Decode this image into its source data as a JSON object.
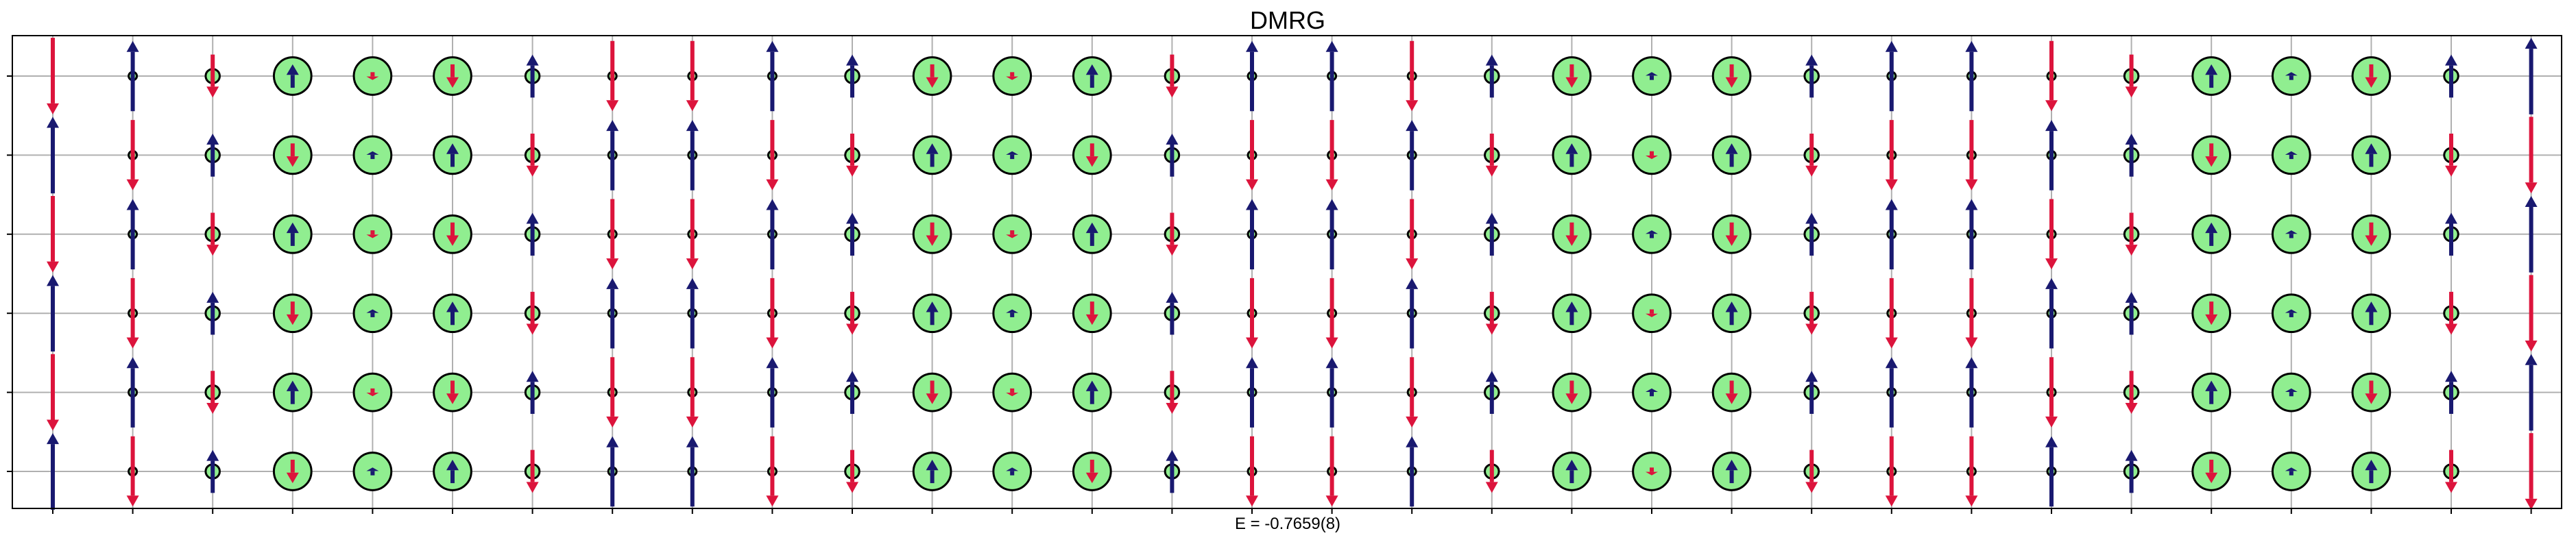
{
  "chart_data": {
    "type": "scatter",
    "title": "DMRG",
    "xlabel": "E = -0.7659(8)",
    "ylabel": "",
    "grid": true,
    "n_columns": 32,
    "n_rows": 6,
    "xlim": [
      -0.5,
      31.5
    ],
    "ylim": [
      -0.5,
      5.5
    ],
    "colors": {
      "spin_up": "#191970",
      "spin_down": "#dc143c",
      "hole_fill": "#90ee90",
      "hole_edge": "#000000",
      "grid": "#b0b0b0"
    },
    "encoding": {
      "hole_density": "circle radius proportional to hole density (0 to 1)",
      "spin": "signed arrow length, positive = up (navy), negative = down (crimson)"
    },
    "rows": [
      {
        "y": 0,
        "hole": [
          0.0,
          0.02,
          0.18,
          0.48,
          0.48,
          0.48,
          0.18,
          0.02,
          0.02,
          0.02,
          0.18,
          0.48,
          0.48,
          0.48,
          0.18,
          0.02,
          0.02,
          0.02,
          0.18,
          0.48,
          0.48,
          0.48,
          0.18,
          0.02,
          0.02,
          0.02,
          0.18,
          0.48,
          0.48,
          0.48,
          0.18,
          0.0
        ],
        "spin": [
          0.98,
          -0.9,
          0.55,
          -0.3,
          0.1,
          0.3,
          -0.55,
          0.9,
          0.9,
          -0.9,
          -0.55,
          0.3,
          0.1,
          -0.3,
          0.55,
          -0.9,
          -0.9,
          0.9,
          -0.55,
          0.3,
          -0.1,
          0.3,
          -0.55,
          -0.9,
          -0.9,
          0.9,
          0.55,
          -0.3,
          0.1,
          0.3,
          -0.55,
          -0.98
        ]
      },
      {
        "y": 1,
        "hole": [
          0.0,
          0.02,
          0.18,
          0.48,
          0.48,
          0.48,
          0.18,
          0.02,
          0.02,
          0.02,
          0.18,
          0.48,
          0.48,
          0.48,
          0.18,
          0.02,
          0.02,
          0.02,
          0.18,
          0.48,
          0.48,
          0.48,
          0.18,
          0.02,
          0.02,
          0.02,
          0.18,
          0.48,
          0.48,
          0.48,
          0.18,
          0.0
        ],
        "spin": [
          -0.98,
          0.9,
          -0.55,
          0.3,
          -0.1,
          -0.3,
          0.55,
          -0.9,
          -0.9,
          0.9,
          0.55,
          -0.3,
          -0.1,
          0.3,
          -0.55,
          0.9,
          0.9,
          -0.9,
          0.55,
          -0.3,
          0.1,
          -0.3,
          0.55,
          0.9,
          0.9,
          -0.9,
          -0.55,
          0.3,
          0.1,
          -0.3,
          0.55,
          0.98
        ]
      },
      {
        "y": 2,
        "hole": [
          0.0,
          0.02,
          0.18,
          0.48,
          0.48,
          0.48,
          0.18,
          0.02,
          0.02,
          0.02,
          0.18,
          0.48,
          0.48,
          0.48,
          0.18,
          0.02,
          0.02,
          0.02,
          0.18,
          0.48,
          0.48,
          0.48,
          0.18,
          0.02,
          0.02,
          0.02,
          0.18,
          0.48,
          0.48,
          0.48,
          0.18,
          0.0
        ],
        "spin": [
          0.98,
          -0.9,
          0.55,
          -0.3,
          0.1,
          0.3,
          -0.55,
          0.9,
          0.9,
          -0.9,
          -0.55,
          0.3,
          0.1,
          -0.3,
          0.55,
          -0.9,
          -0.9,
          0.9,
          -0.55,
          0.3,
          -0.1,
          0.3,
          -0.55,
          -0.9,
          -0.9,
          0.9,
          0.55,
          -0.3,
          0.1,
          0.3,
          -0.55,
          -0.98
        ]
      },
      {
        "y": 3,
        "hole": [
          0.0,
          0.02,
          0.18,
          0.48,
          0.48,
          0.48,
          0.18,
          0.02,
          0.02,
          0.02,
          0.18,
          0.48,
          0.48,
          0.48,
          0.18,
          0.02,
          0.02,
          0.02,
          0.18,
          0.48,
          0.48,
          0.48,
          0.18,
          0.02,
          0.02,
          0.02,
          0.18,
          0.48,
          0.48,
          0.48,
          0.18,
          0.0
        ],
        "spin": [
          -0.98,
          0.9,
          -0.55,
          0.3,
          -0.1,
          -0.3,
          0.55,
          -0.9,
          -0.9,
          0.9,
          0.55,
          -0.3,
          -0.1,
          0.3,
          -0.55,
          0.9,
          0.9,
          -0.9,
          0.55,
          -0.3,
          0.1,
          -0.3,
          0.55,
          0.9,
          0.9,
          -0.9,
          -0.55,
          0.3,
          0.1,
          -0.3,
          0.55,
          0.98
        ]
      },
      {
        "y": 4,
        "hole": [
          0.0,
          0.02,
          0.18,
          0.48,
          0.48,
          0.48,
          0.18,
          0.02,
          0.02,
          0.02,
          0.18,
          0.48,
          0.48,
          0.48,
          0.18,
          0.02,
          0.02,
          0.02,
          0.18,
          0.48,
          0.48,
          0.48,
          0.18,
          0.02,
          0.02,
          0.02,
          0.18,
          0.48,
          0.48,
          0.48,
          0.18,
          0.0
        ],
        "spin": [
          0.98,
          -0.9,
          0.55,
          -0.3,
          0.1,
          0.3,
          -0.55,
          0.9,
          0.9,
          -0.9,
          -0.55,
          0.3,
          0.1,
          -0.3,
          0.55,
          -0.9,
          -0.9,
          0.9,
          -0.55,
          0.3,
          -0.1,
          0.3,
          -0.55,
          -0.9,
          -0.9,
          0.9,
          0.55,
          -0.3,
          0.1,
          0.3,
          -0.55,
          -0.98
        ]
      },
      {
        "y": 5,
        "hole": [
          0.0,
          0.02,
          0.18,
          0.48,
          0.48,
          0.48,
          0.18,
          0.02,
          0.02,
          0.02,
          0.18,
          0.48,
          0.48,
          0.48,
          0.18,
          0.02,
          0.02,
          0.02,
          0.18,
          0.48,
          0.48,
          0.48,
          0.18,
          0.02,
          0.02,
          0.02,
          0.18,
          0.48,
          0.48,
          0.48,
          0.18,
          0.0
        ],
        "spin": [
          -0.98,
          0.9,
          -0.55,
          0.3,
          -0.1,
          -0.3,
          0.55,
          -0.9,
          -0.9,
          0.9,
          0.55,
          -0.3,
          -0.1,
          0.3,
          -0.55,
          0.9,
          0.9,
          -0.9,
          0.55,
          -0.3,
          0.1,
          -0.3,
          0.55,
          0.9,
          0.9,
          -0.9,
          -0.55,
          0.3,
          0.1,
          -0.3,
          0.55,
          0.98
        ]
      }
    ]
  }
}
